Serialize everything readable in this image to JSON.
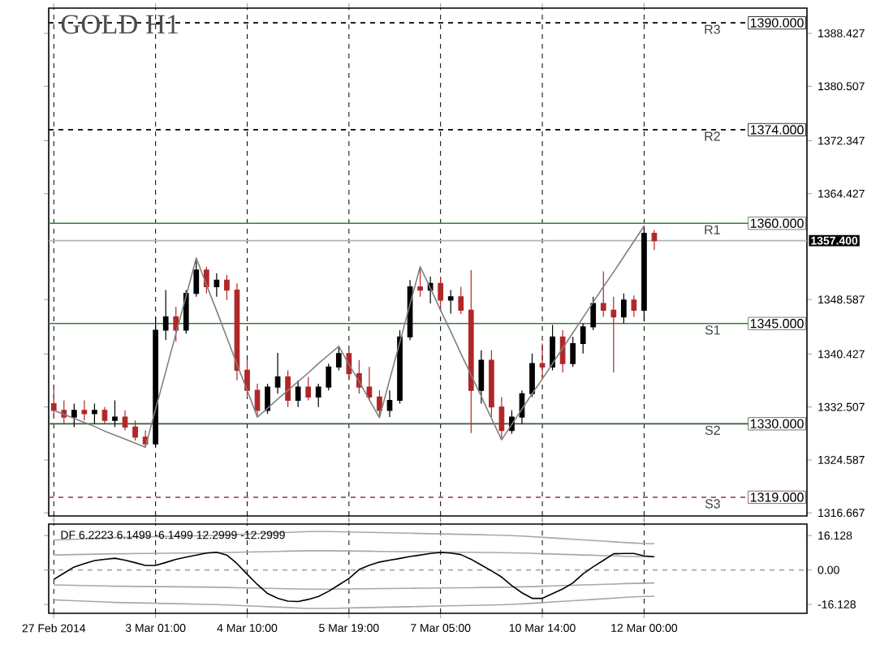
{
  "chart_data": [
    {
      "type": "candlestick",
      "title": "GOLD H1",
      "categories": [
        null,
        null,
        null,
        null,
        null,
        null,
        null,
        null,
        null,
        null,
        null,
        null,
        null,
        null,
        null,
        null,
        null,
        null,
        null,
        null,
        null,
        null,
        null,
        null,
        null,
        null,
        null,
        null,
        null,
        null,
        null,
        null,
        null,
        null,
        null,
        null,
        null,
        null,
        null,
        null,
        null,
        null,
        null,
        null,
        null,
        null,
        null,
        null,
        null,
        null,
        null,
        null,
        null,
        null,
        null,
        null,
        null,
        null,
        null,
        null
      ],
      "ohlc": [
        [
          1333,
          1335.7,
          1331,
          1332
        ],
        [
          1332,
          1333.5,
          1330,
          1331
        ],
        [
          1331,
          1333,
          1329.5,
          1332
        ],
        [
          1332,
          1333.5,
          1330.5,
          1331.5
        ],
        [
          1331.5,
          1333,
          1330,
          1332
        ],
        [
          1332,
          1332.5,
          1330,
          1330.5
        ],
        [
          1330.5,
          1333.5,
          1329.5,
          1331
        ],
        [
          1331,
          1332,
          1329,
          1329.5
        ],
        [
          1329.5,
          1330.5,
          1327.5,
          1328
        ],
        [
          1328,
          1329,
          1326.5,
          1327
        ],
        [
          1327,
          1346,
          1326.5,
          1344
        ],
        [
          1344,
          1350,
          1342.5,
          1346
        ],
        [
          1346,
          1347.5,
          1342.3,
          1344
        ],
        [
          1344,
          1350,
          1343.5,
          1349.5
        ],
        [
          1349.5,
          1354.8,
          1349,
          1353
        ],
        [
          1353,
          1353.5,
          1349.5,
          1350.5
        ],
        [
          1350.5,
          1352.5,
          1349,
          1351.5
        ],
        [
          1351.5,
          1352.3,
          1348.5,
          1350
        ],
        [
          1350,
          1351,
          1336.5,
          1338
        ],
        [
          1338,
          1339.5,
          1334,
          1335
        ],
        [
          1335,
          1336,
          1331,
          1332
        ],
        [
          1332,
          1336,
          1331.5,
          1335.5
        ],
        [
          1335.5,
          1340.6,
          1334.5,
          1337
        ],
        [
          1337,
          1338,
          1332.5,
          1333.5
        ],
        [
          1333.5,
          1336.5,
          1332.5,
          1335.5
        ],
        [
          1335.5,
          1337,
          1333.5,
          1334
        ],
        [
          1334,
          1336,
          1332.5,
          1335.5
        ],
        [
          1335.5,
          1339,
          1335,
          1338.5
        ],
        [
          1338.5,
          1341.6,
          1338,
          1340.5
        ],
        [
          1340.5,
          1341,
          1336.5,
          1337.5
        ],
        [
          1337.5,
          1339.5,
          1334.5,
          1335.5
        ],
        [
          1335.5,
          1338.5,
          1333.5,
          1334
        ],
        [
          1334,
          1335,
          1330.9,
          1332
        ],
        [
          1332,
          1335,
          1331,
          1333.5
        ],
        [
          1333.5,
          1344,
          1333,
          1343
        ],
        [
          1343,
          1351.5,
          1342.5,
          1350.5
        ],
        [
          1350.5,
          1353.5,
          1349,
          1350
        ],
        [
          1350,
          1352,
          1348,
          1351
        ],
        [
          1351,
          1352,
          1347.5,
          1348.5
        ],
        [
          1348.5,
          1350,
          1346.5,
          1349
        ],
        [
          1349,
          1350.5,
          1346.4,
          1347
        ],
        [
          1347,
          1353,
          1328.6,
          1335
        ],
        [
          1335,
          1341,
          1333,
          1339.5
        ],
        [
          1339.5,
          1341,
          1331,
          1332.5
        ],
        [
          1332.5,
          1334,
          1327.6,
          1329
        ],
        [
          1329,
          1332,
          1328.5,
          1331
        ],
        [
          1331,
          1335,
          1330,
          1334.5
        ],
        [
          1334.5,
          1340.5,
          1334,
          1339
        ],
        [
          1339,
          1342,
          1337,
          1338.5
        ],
        [
          1338.5,
          1344.8,
          1338,
          1343
        ],
        [
          1343,
          1344,
          1337.7,
          1339
        ],
        [
          1339,
          1343,
          1338.5,
          1342
        ],
        [
          1342,
          1345,
          1340.5,
          1344.5
        ],
        [
          1344.5,
          1349,
          1344,
          1348
        ],
        [
          1348,
          1352.8,
          1346,
          1347
        ],
        [
          1347,
          1349,
          1337.7,
          1346
        ],
        [
          1346,
          1349.5,
          1345,
          1348.5
        ],
        [
          1348.5,
          1349.2,
          1346,
          1347
        ],
        [
          1347,
          1359.6,
          1345.3,
          1358.5
        ],
        [
          1358.5,
          1359,
          1356,
          1357.4
        ]
      ],
      "series": [
        {
          "type": "line",
          "color": "#808080",
          "values": [
            1332,
            1331.4,
            1330.8,
            1330.2,
            1329.6,
            1328.9,
            1328.3,
            1327.7,
            1327.1,
            1326.5,
            1332.2,
            1337.8,
            1343.5,
            1349.1,
            1354.8,
            1350.8,
            1346.9,
            1342.9,
            1338.9,
            1335,
            1331,
            1332.3,
            1333.7,
            1335,
            1336.3,
            1337.6,
            1339,
            1340.3,
            1341.6,
            1338.9,
            1336.3,
            1333.6,
            1330.9,
            1336.6,
            1342.2,
            1347.9,
            1353.5,
            1350.3,
            1347,
            1343.8,
            1340.5,
            1337.3,
            1334.1,
            1330.8,
            1327.6,
            1329.9,
            1332.2,
            1334.5,
            1336.7,
            1339,
            1341.3,
            1343.6,
            1345.9,
            1348.2,
            1350.5,
            1352.7,
            1355,
            1357.3,
            1359.6,
            null
          ]
        }
      ],
      "ylim": [
        1316.2,
        1392.2
      ],
      "yticks": [
        1316.667,
        1324.587,
        1332.507,
        1340.427,
        1348.587,
        1364.427,
        1372.347,
        1380.507,
        1388.427
      ],
      "grid": "x",
      "ref_lines": [
        {
          "axis": "y",
          "value": 1390,
          "label": "1390.000",
          "color": "#000000",
          "line_style": "dashed"
        },
        {
          "axis": "y",
          "value": 1374,
          "label": "1374.000",
          "color": "#000000",
          "line_style": "dashed"
        },
        {
          "axis": "y",
          "value": 1360,
          "label": "1360.000",
          "color": "#3c7a3c",
          "line_style": "solid"
        },
        {
          "axis": "y",
          "value": 1345,
          "label": "1345.000",
          "color": "#3c7a3c",
          "line_style": "solid"
        },
        {
          "axis": "y",
          "value": 1330,
          "label": "1330.000",
          "color": "#3c5a3c",
          "line_style": "solid"
        },
        {
          "axis": "y",
          "value": 1319,
          "label": "1319.000",
          "color": "#8a3a3a",
          "line_style": "dashed"
        },
        {
          "axis": "y",
          "value": 1357.4,
          "label": "1357.400",
          "color": "#b4b4b4",
          "line_style": "solid"
        }
      ],
      "annotations": [
        {
          "text": "R3",
          "y": 1390
        },
        {
          "text": "R2",
          "y": 1374
        },
        {
          "text": "R1",
          "y": 1360
        },
        {
          "text": "S1",
          "y": 1345
        },
        {
          "text": "S2",
          "y": 1330
        },
        {
          "text": "S3",
          "y": 1319
        }
      ]
    },
    {
      "type": "line",
      "title": "DF 6.2223 6.1499 -6.1499 12.2999 -12.2999",
      "categories": [
        "27 Feb 2014",
        null,
        null,
        null,
        null,
        null,
        null,
        null,
        null,
        null,
        "3 Mar 01:00",
        null,
        null,
        null,
        null,
        null,
        null,
        null,
        null,
        "4 Mar 10:00",
        null,
        null,
        null,
        null,
        null,
        null,
        null,
        null,
        null,
        "5 Mar 19:00",
        null,
        null,
        null,
        null,
        null,
        null,
        null,
        null,
        "7 Mar 05:00",
        null,
        null,
        null,
        null,
        null,
        null,
        null,
        null,
        null,
        "10 Mar 14:00",
        null,
        null,
        null,
        null,
        null,
        null,
        null,
        null,
        null,
        "12 Mar 00:00",
        null
      ],
      "series": [
        {
          "color": "#a8a8a8",
          "values": [
            14,
            14.2,
            14.4,
            14.6,
            14.8,
            15,
            15.2,
            15.3,
            15.4,
            15.5,
            15.6,
            15.7,
            15.8,
            15.9,
            16,
            16.1,
            16.2,
            16.4,
            16.6,
            16.8,
            17,
            17.2,
            17.4,
            17.6,
            17.8,
            18,
            18,
            18,
            17.9,
            17.8,
            17.7,
            17.6,
            17.5,
            17.4,
            17.3,
            17.2,
            17.1,
            17,
            16.9,
            16.8,
            16.7,
            16.6,
            16.5,
            16.4,
            16.3,
            16.1,
            15.9,
            15.6,
            15.3,
            15,
            14.7,
            14.4,
            14.1,
            13.8,
            13.5,
            13.2,
            12.9,
            12.6,
            12.4,
            12.3
          ]
        },
        {
          "color": "#a8a8a8",
          "values": [
            7,
            7.1,
            7.2,
            7.3,
            7.4,
            7.5,
            7.6,
            7.6,
            7.7,
            7.7,
            7.8,
            7.8,
            7.9,
            7.9,
            8,
            8,
            8.1,
            8.2,
            8.3,
            8.4,
            8.5,
            8.6,
            8.7,
            8.8,
            8.9,
            9,
            9,
            9,
            8.9,
            8.9,
            8.8,
            8.8,
            8.7,
            8.7,
            8.6,
            8.6,
            8.5,
            8.5,
            8.4,
            8.4,
            8.3,
            8.3,
            8.2,
            8.2,
            8.1,
            8,
            7.9,
            7.8,
            7.6,
            7.5,
            7.3,
            7.2,
            7,
            6.9,
            6.7,
            6.6,
            6.4,
            6.3,
            6.2,
            6.1
          ]
        },
        {
          "color": "#a8a8a8",
          "values": [
            -7,
            -7.1,
            -7.2,
            -7.3,
            -7.4,
            -7.5,
            -7.6,
            -7.6,
            -7.7,
            -7.7,
            -7.8,
            -7.8,
            -7.9,
            -7.9,
            -8,
            -8,
            -8.1,
            -8.2,
            -8.3,
            -8.4,
            -8.5,
            -8.6,
            -8.7,
            -8.8,
            -8.9,
            -9,
            -9,
            -9,
            -8.9,
            -8.9,
            -8.8,
            -8.8,
            -8.7,
            -8.7,
            -8.6,
            -8.6,
            -8.5,
            -8.5,
            -8.4,
            -8.4,
            -8.3,
            -8.3,
            -8.2,
            -8.2,
            -8.1,
            -8,
            -7.9,
            -7.8,
            -7.6,
            -7.5,
            -7.3,
            -7.2,
            -7,
            -6.9,
            -6.7,
            -6.6,
            -6.4,
            -6.3,
            -6.2,
            -6.1
          ]
        },
        {
          "color": "#a8a8a8",
          "values": [
            -14,
            -14.2,
            -14.4,
            -14.6,
            -14.8,
            -15,
            -15.2,
            -15.3,
            -15.4,
            -15.5,
            -15.6,
            -15.7,
            -15.8,
            -15.9,
            -16,
            -16.1,
            -16.2,
            -16.4,
            -16.6,
            -16.8,
            -17,
            -17.2,
            -17.4,
            -17.6,
            -17.8,
            -18,
            -18,
            -18,
            -17.9,
            -17.8,
            -17.7,
            -17.6,
            -17.5,
            -17.4,
            -17.3,
            -17.2,
            -17.1,
            -17,
            -16.9,
            -16.8,
            -16.7,
            -16.6,
            -16.5,
            -16.4,
            -16.3,
            -16.1,
            -15.9,
            -15.6,
            -15.3,
            -15,
            -14.7,
            -14.4,
            -14.1,
            -13.8,
            -13.5,
            -13.2,
            -12.9,
            -12.6,
            -12.4,
            -12.3
          ]
        },
        {
          "color": "#000000",
          "values": [
            -4.4,
            -1.5,
            1.4,
            3,
            4.4,
            5,
            5.5,
            4.6,
            3.4,
            2.1,
            2.1,
            3.5,
            5,
            6,
            7,
            7.9,
            8.3,
            7,
            3,
            -2,
            -6.8,
            -11,
            -13.3,
            -14.6,
            -14.8,
            -13.8,
            -12.4,
            -10,
            -7,
            -4,
            0.2,
            2.2,
            3.7,
            4.6,
            5.4,
            6.3,
            7,
            7.7,
            8.2,
            7.9,
            7.2,
            5,
            2.3,
            -0.4,
            -3.3,
            -7.3,
            -10.7,
            -13.3,
            -13.3,
            -11.1,
            -8.9,
            -6.1,
            -1.8,
            1.5,
            4.5,
            7.6,
            7.7,
            7.7,
            6.6,
            6.2
          ]
        }
      ],
      "ylim": [
        -20.3,
        21.5
      ],
      "yticks": [
        -16.128,
        {
          "value": 0,
          "label": "0.00"
        },
        16.128
      ],
      "grid": "x",
      "ref_lines": [
        {
          "axis": "y",
          "value": 0,
          "color": "#a8a8a8",
          "line_style": "dashed"
        }
      ]
    }
  ]
}
